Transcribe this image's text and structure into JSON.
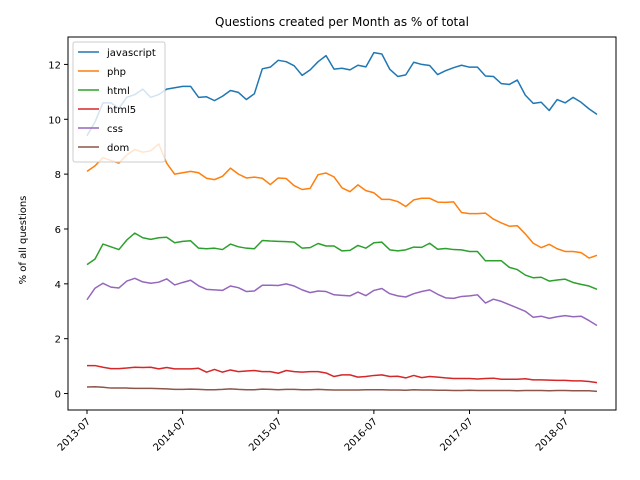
{
  "chart_data": {
    "type": "line",
    "title": "Questions created per Month as % of total",
    "xlabel": "",
    "ylabel": "% of all questions",
    "ylim": [
      -0.6,
      13.0
    ],
    "y_ticks": [
      0,
      2,
      4,
      6,
      8,
      10,
      12
    ],
    "x_ticks": [
      "2013-07",
      "2014-07",
      "2015-07",
      "2016-07",
      "2017-07",
      "2018-07"
    ],
    "x_start": "2013-07",
    "x_end": "2018-10",
    "grid": false,
    "legend_position": "top-left",
    "series": [
      {
        "name": "javascript",
        "color": "#1f77b4",
        "values": [
          9.4,
          9.9,
          10.6,
          10.6,
          10.4,
          10.8,
          10.9,
          11.1,
          10.8,
          10.9,
          11.1,
          11.15,
          11.2,
          11.2,
          10.8,
          10.82,
          10.68,
          10.84,
          11.05,
          10.98,
          10.72,
          10.93,
          11.84,
          11.9,
          12.15,
          12.1,
          11.95,
          11.6,
          11.8,
          12.1,
          12.32,
          11.83,
          11.86,
          11.8,
          11.97,
          11.91,
          12.43,
          12.38,
          11.82,
          11.56,
          11.62,
          12.08,
          12.0,
          11.96,
          11.63,
          11.77,
          11.88,
          11.97,
          11.9,
          11.9,
          11.58,
          11.56,
          11.3,
          11.27,
          11.43,
          10.88,
          10.58,
          10.62,
          10.32,
          10.72,
          10.6,
          10.8,
          10.62,
          10.38,
          10.18
        ]
      },
      {
        "name": "php",
        "color": "#ff7f0e",
        "values": [
          8.1,
          8.3,
          8.6,
          8.5,
          8.4,
          8.7,
          8.9,
          8.8,
          8.85,
          9.1,
          8.4,
          8.0,
          8.05,
          8.1,
          8.05,
          7.85,
          7.8,
          7.92,
          8.22,
          8.0,
          7.86,
          7.89,
          7.85,
          7.62,
          7.86,
          7.84,
          7.58,
          7.44,
          7.48,
          7.98,
          8.04,
          7.9,
          7.5,
          7.36,
          7.61,
          7.4,
          7.32,
          7.08,
          7.08,
          7.0,
          6.82,
          7.06,
          7.12,
          7.12,
          6.98,
          6.97,
          6.99,
          6.6,
          6.56,
          6.56,
          6.58,
          6.36,
          6.22,
          6.1,
          6.12,
          5.82,
          5.48,
          5.32,
          5.44,
          5.28,
          5.18,
          5.18,
          5.14,
          4.94,
          5.04
        ]
      },
      {
        "name": "html",
        "color": "#2ca02c",
        "values": [
          4.7,
          4.9,
          5.45,
          5.35,
          5.25,
          5.6,
          5.85,
          5.68,
          5.62,
          5.68,
          5.7,
          5.5,
          5.55,
          5.57,
          5.3,
          5.28,
          5.3,
          5.25,
          5.45,
          5.35,
          5.3,
          5.28,
          5.58,
          5.56,
          5.55,
          5.54,
          5.52,
          5.3,
          5.32,
          5.47,
          5.38,
          5.38,
          5.2,
          5.22,
          5.4,
          5.3,
          5.5,
          5.52,
          5.24,
          5.2,
          5.24,
          5.34,
          5.33,
          5.48,
          5.26,
          5.29,
          5.25,
          5.24,
          5.18,
          5.18,
          4.84,
          4.84,
          4.84,
          4.6,
          4.52,
          4.32,
          4.22,
          4.24,
          4.1,
          4.14,
          4.17,
          4.05,
          3.98,
          3.92,
          3.8
        ]
      },
      {
        "name": "html5",
        "color": "#d62728",
        "values": [
          1.02,
          1.02,
          0.96,
          0.91,
          0.91,
          0.93,
          0.96,
          0.95,
          0.96,
          0.9,
          0.95,
          0.9,
          0.9,
          0.9,
          0.92,
          0.78,
          0.88,
          0.78,
          0.86,
          0.8,
          0.82,
          0.84,
          0.8,
          0.8,
          0.74,
          0.84,
          0.8,
          0.78,
          0.8,
          0.8,
          0.75,
          0.62,
          0.68,
          0.68,
          0.6,
          0.62,
          0.66,
          0.68,
          0.62,
          0.63,
          0.57,
          0.66,
          0.58,
          0.62,
          0.6,
          0.57,
          0.55,
          0.55,
          0.55,
          0.53,
          0.55,
          0.56,
          0.52,
          0.52,
          0.52,
          0.54,
          0.5,
          0.5,
          0.49,
          0.48,
          0.48,
          0.46,
          0.46,
          0.44,
          0.4
        ]
      },
      {
        "name": "css",
        "color": "#9467bd",
        "values": [
          3.42,
          3.84,
          4.02,
          3.88,
          3.85,
          4.1,
          4.2,
          4.07,
          4.02,
          4.06,
          4.18,
          3.96,
          4.05,
          4.13,
          3.93,
          3.8,
          3.78,
          3.76,
          3.92,
          3.86,
          3.72,
          3.74,
          3.95,
          3.95,
          3.94,
          4.0,
          3.92,
          3.78,
          3.68,
          3.74,
          3.72,
          3.6,
          3.58,
          3.56,
          3.7,
          3.57,
          3.76,
          3.83,
          3.64,
          3.56,
          3.52,
          3.64,
          3.72,
          3.78,
          3.62,
          3.49,
          3.47,
          3.54,
          3.56,
          3.6,
          3.3,
          3.44,
          3.36,
          3.24,
          3.12,
          3.0,
          2.78,
          2.82,
          2.74,
          2.8,
          2.84,
          2.8,
          2.82,
          2.66,
          2.48
        ]
      },
      {
        "name": "dom",
        "color": "#8c564b",
        "values": [
          0.24,
          0.25,
          0.23,
          0.2,
          0.2,
          0.2,
          0.19,
          0.19,
          0.19,
          0.18,
          0.17,
          0.15,
          0.15,
          0.16,
          0.15,
          0.14,
          0.14,
          0.15,
          0.17,
          0.15,
          0.14,
          0.14,
          0.16,
          0.15,
          0.14,
          0.15,
          0.15,
          0.14,
          0.14,
          0.15,
          0.14,
          0.13,
          0.13,
          0.13,
          0.13,
          0.14,
          0.14,
          0.14,
          0.13,
          0.13,
          0.12,
          0.14,
          0.13,
          0.13,
          0.12,
          0.12,
          0.11,
          0.11,
          0.12,
          0.11,
          0.11,
          0.11,
          0.11,
          0.11,
          0.1,
          0.11,
          0.11,
          0.11,
          0.1,
          0.11,
          0.11,
          0.1,
          0.1,
          0.1,
          0.08
        ]
      }
    ]
  }
}
